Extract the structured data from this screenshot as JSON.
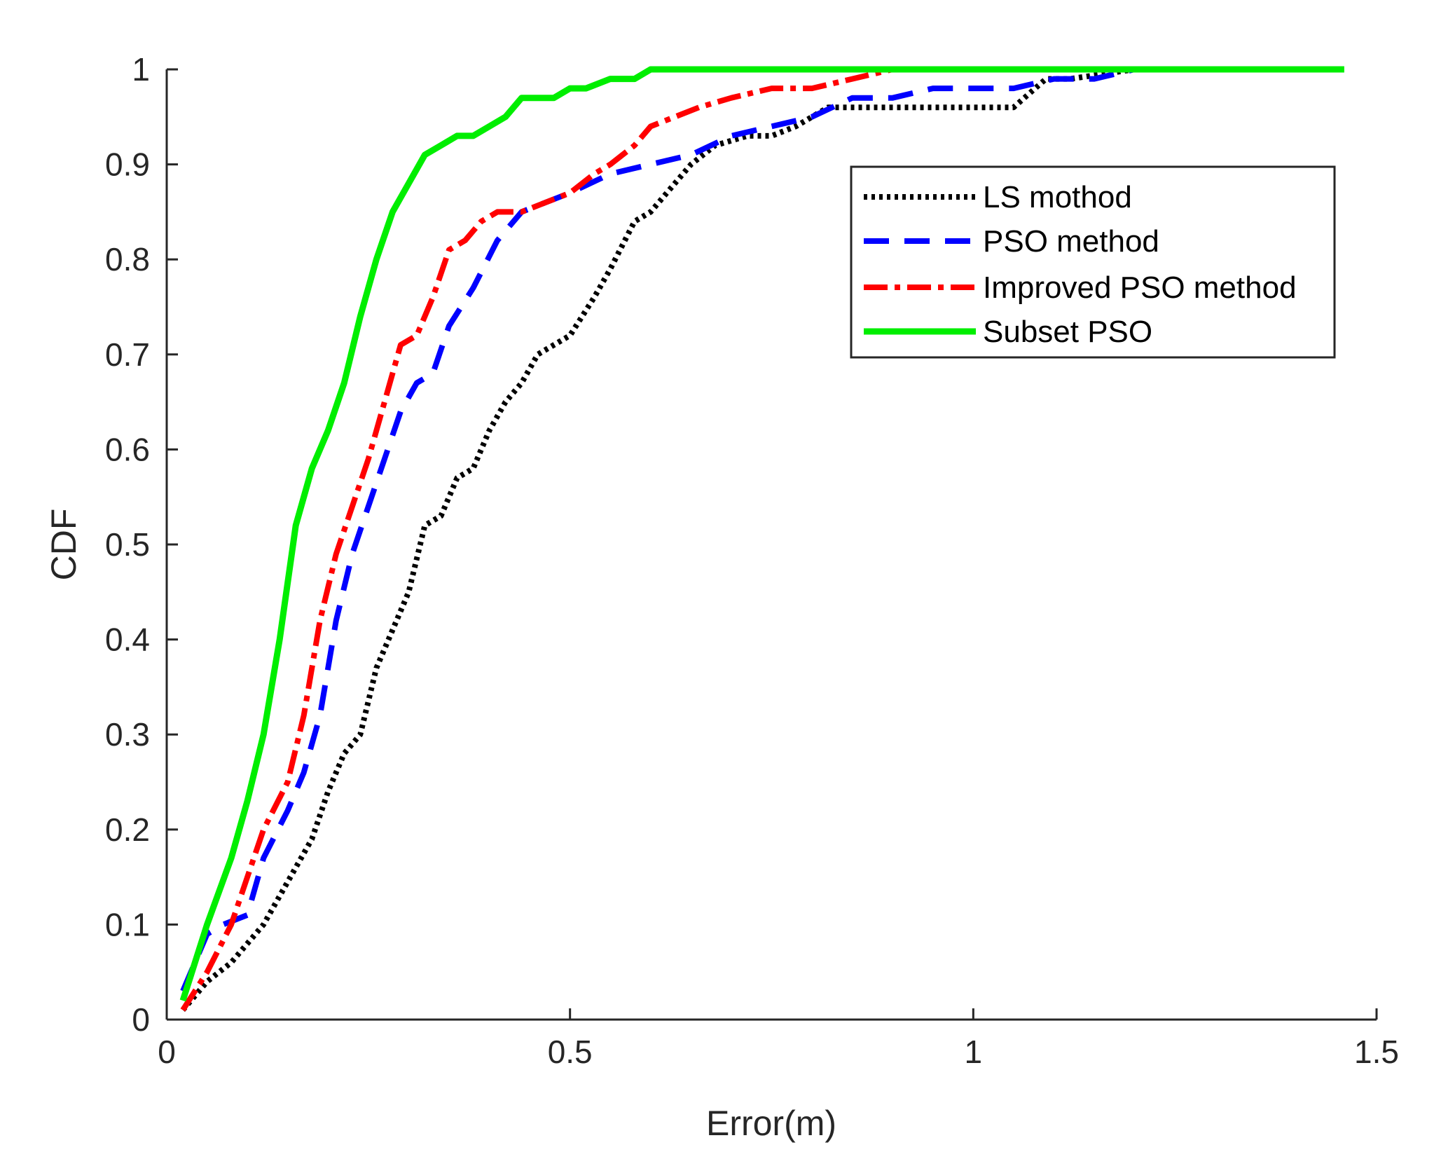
{
  "chart_data": {
    "type": "line",
    "title": "",
    "xlabel": "Error(m)",
    "ylabel": "CDF",
    "xlim": [
      0,
      1.5
    ],
    "ylim": [
      0,
      1
    ],
    "xticks": [
      0,
      0.5,
      1,
      1.5
    ],
    "xtick_labels": [
      "0",
      "0.5",
      "1",
      "1.5"
    ],
    "yticks": [
      0,
      0.1,
      0.2,
      0.3,
      0.4,
      0.5,
      0.6,
      0.7,
      0.8,
      0.9,
      1
    ],
    "ytick_labels": [
      "0",
      "0.1",
      "0.2",
      "0.3",
      "0.4",
      "0.5",
      "0.6",
      "0.7",
      "0.8",
      "0.9",
      "1"
    ],
    "grid": false,
    "legend_position": "top-right",
    "series": [
      {
        "name": "LS mothod",
        "color": "#000000",
        "style": "dotted",
        "x": [
          0.02,
          0.05,
          0.08,
          0.1,
          0.12,
          0.14,
          0.16,
          0.18,
          0.2,
          0.22,
          0.24,
          0.26,
          0.28,
          0.3,
          0.32,
          0.34,
          0.36,
          0.38,
          0.4,
          0.42,
          0.44,
          0.46,
          0.5,
          0.53,
          0.55,
          0.58,
          0.6,
          0.62,
          0.65,
          0.68,
          0.72,
          0.75,
          0.78,
          0.82,
          0.88,
          0.92,
          1.0,
          1.05,
          1.09,
          1.12,
          1.2,
          1.45
        ],
        "y": [
          0.01,
          0.04,
          0.06,
          0.08,
          0.1,
          0.13,
          0.16,
          0.19,
          0.24,
          0.28,
          0.3,
          0.37,
          0.41,
          0.45,
          0.52,
          0.53,
          0.57,
          0.58,
          0.62,
          0.65,
          0.67,
          0.7,
          0.72,
          0.76,
          0.79,
          0.84,
          0.85,
          0.87,
          0.9,
          0.92,
          0.93,
          0.93,
          0.94,
          0.96,
          0.96,
          0.96,
          0.96,
          0.96,
          0.99,
          0.99,
          1.0,
          1.0
        ]
      },
      {
        "name": "PSO method",
        "color": "#0000ff",
        "style": "dashed",
        "x": [
          0.02,
          0.05,
          0.07,
          0.1,
          0.12,
          0.15,
          0.17,
          0.19,
          0.21,
          0.23,
          0.25,
          0.27,
          0.29,
          0.31,
          0.33,
          0.35,
          0.38,
          0.41,
          0.44,
          0.47,
          0.5,
          0.55,
          0.6,
          0.65,
          0.7,
          0.75,
          0.8,
          0.85,
          0.9,
          0.95,
          1.0,
          1.05,
          1.1,
          1.15,
          1.2
        ],
        "y": [
          0.03,
          0.09,
          0.1,
          0.11,
          0.17,
          0.22,
          0.26,
          0.32,
          0.42,
          0.49,
          0.54,
          0.59,
          0.64,
          0.67,
          0.68,
          0.73,
          0.77,
          0.82,
          0.85,
          0.86,
          0.87,
          0.89,
          0.9,
          0.91,
          0.93,
          0.94,
          0.95,
          0.97,
          0.97,
          0.98,
          0.98,
          0.98,
          0.99,
          0.99,
          1.0
        ]
      },
      {
        "name": "Improved PSO method",
        "color": "#ff0000",
        "style": "dashdot",
        "x": [
          0.02,
          0.05,
          0.08,
          0.1,
          0.12,
          0.15,
          0.17,
          0.19,
          0.21,
          0.23,
          0.25,
          0.27,
          0.29,
          0.31,
          0.33,
          0.35,
          0.37,
          0.39,
          0.41,
          0.44,
          0.47,
          0.5,
          0.53,
          0.55,
          0.58,
          0.6,
          0.63,
          0.66,
          0.7,
          0.75,
          0.8,
          0.85,
          0.9
        ],
        "y": [
          0.01,
          0.05,
          0.1,
          0.15,
          0.2,
          0.25,
          0.32,
          0.42,
          0.49,
          0.54,
          0.59,
          0.65,
          0.71,
          0.72,
          0.76,
          0.81,
          0.82,
          0.84,
          0.85,
          0.85,
          0.86,
          0.87,
          0.89,
          0.9,
          0.92,
          0.94,
          0.95,
          0.96,
          0.97,
          0.98,
          0.98,
          0.99,
          1.0
        ]
      },
      {
        "name": "Subset PSO",
        "color": "#00ee00",
        "style": "solid",
        "x": [
          0.02,
          0.05,
          0.08,
          0.1,
          0.12,
          0.14,
          0.16,
          0.18,
          0.2,
          0.22,
          0.24,
          0.26,
          0.28,
          0.3,
          0.32,
          0.34,
          0.36,
          0.38,
          0.4,
          0.42,
          0.44,
          0.46,
          0.48,
          0.5,
          0.52,
          0.55,
          0.58,
          0.6,
          0.62,
          0.7,
          0.8,
          1.0,
          1.2,
          1.44,
          1.46
        ],
        "y": [
          0.02,
          0.1,
          0.17,
          0.23,
          0.3,
          0.4,
          0.52,
          0.58,
          0.62,
          0.67,
          0.74,
          0.8,
          0.85,
          0.88,
          0.91,
          0.92,
          0.93,
          0.93,
          0.94,
          0.95,
          0.97,
          0.97,
          0.97,
          0.98,
          0.98,
          0.99,
          0.99,
          1.0,
          1.0,
          1.0,
          1.0,
          1.0,
          1.0,
          1.0,
          1.0
        ]
      }
    ]
  }
}
